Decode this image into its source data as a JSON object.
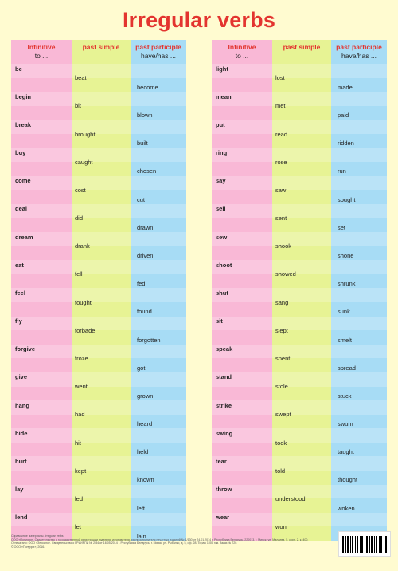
{
  "title": "Irregular verbs",
  "headers": {
    "infinitive": "Infinitive",
    "infinitive_sub": "to ...",
    "past_simple": "past simple",
    "past_participle": "past participle",
    "past_participle_sub": "have/has ..."
  },
  "left_verbs": [
    [
      "be",
      "beat",
      "become"
    ],
    [
      "begin",
      "bit",
      "blown"
    ],
    [
      "break",
      "brought",
      "built"
    ],
    [
      "buy",
      "caught",
      "chosen"
    ],
    [
      "come",
      "cost",
      "cut"
    ],
    [
      "deal",
      "did",
      "drawn"
    ],
    [
      "dream",
      "drank",
      "driven"
    ],
    [
      "eat",
      "fell",
      "fed"
    ],
    [
      "feel",
      "fought",
      "found"
    ],
    [
      "fly",
      "forbade",
      "forgotten"
    ],
    [
      "forgive",
      "froze",
      "got"
    ],
    [
      "give",
      "went",
      "grown"
    ],
    [
      "hang",
      "had",
      "heard"
    ],
    [
      "hide",
      "hit",
      "held"
    ],
    [
      "hurt",
      "kept",
      "known"
    ],
    [
      "lay",
      "led",
      "left"
    ],
    [
      "lend",
      "let",
      "lain"
    ]
  ],
  "right_verbs": [
    [
      "light",
      "lost",
      "made"
    ],
    [
      "mean",
      "met",
      "paid"
    ],
    [
      "put",
      "read",
      "ridden"
    ],
    [
      "ring",
      "rose",
      "run"
    ],
    [
      "say",
      "saw",
      "sought"
    ],
    [
      "sell",
      "sent",
      "set"
    ],
    [
      "sew",
      "shook",
      "shone"
    ],
    [
      "shoot",
      "showed",
      "shrunk"
    ],
    [
      "shut",
      "sang",
      "sunk"
    ],
    [
      "sit",
      "slept",
      "smelt"
    ],
    [
      "speak",
      "spent",
      "spread"
    ],
    [
      "stand",
      "stole",
      "stuck"
    ],
    [
      "strike",
      "swept",
      "swum"
    ],
    [
      "swing",
      "took",
      "taught"
    ],
    [
      "tear",
      "told",
      "thought"
    ],
    [
      "throw",
      "understood",
      "woken"
    ],
    [
      "wear",
      "won",
      "written"
    ]
  ],
  "footer": [
    "Справочные материалы. Irregular verbs",
    "ООО «Попурри». Свидетельство о государственной регистрации издателя, изготовителя, распространителя печатных изданий № 1/130 от 24.01.2014 г. Республика Беларусь, 220013, г. Минск, ул. Малаева, 5, корп. 2, к. 400.",
    "Отпечатано: ООО «Зеркало». Свидетельство о ГРИИРПИ № 2/84 от 16.05.2014 г. Республика Беларусь, г. Минск, ул. Рыбалко, д. 5, оф. 28. Тираж 1000 экз. Заказ № 720.",
    "© ООО «Попурри», 2016."
  ]
}
